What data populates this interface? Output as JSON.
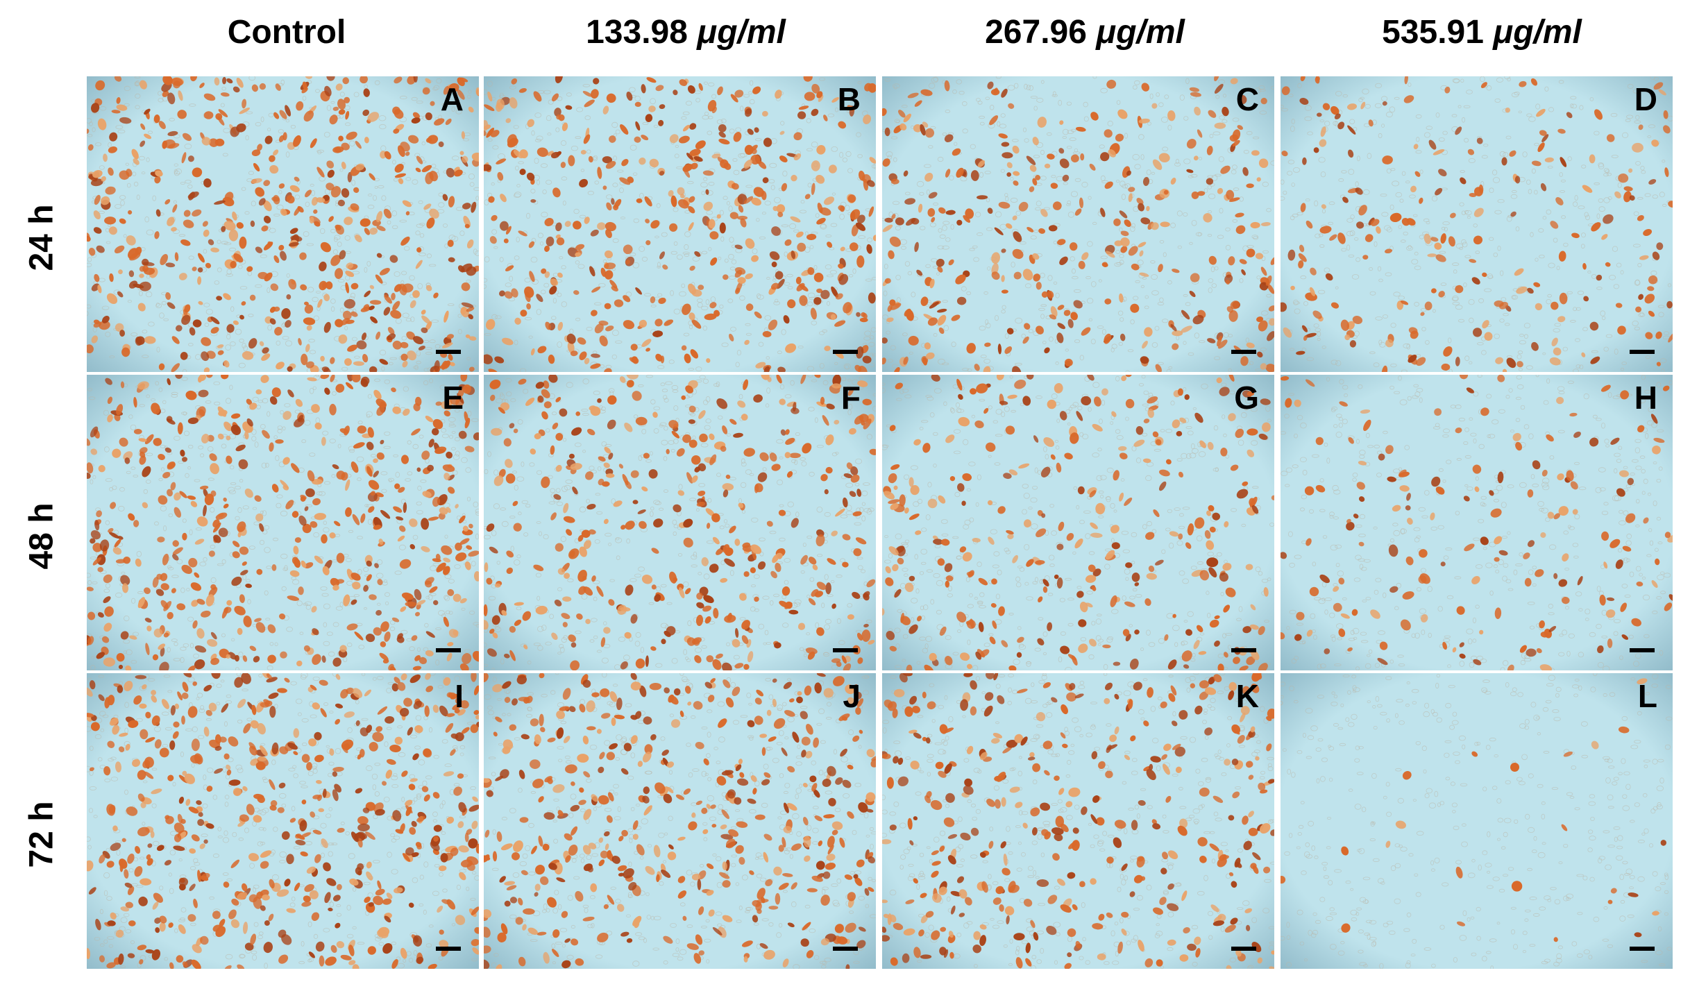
{
  "column_headers": [
    {
      "id": "control",
      "prefix": "Control",
      "unit": ""
    },
    {
      "id": "c1",
      "prefix": "133.98 ",
      "unit": "μg/ml"
    },
    {
      "id": "c2",
      "prefix": "267.96 ",
      "unit": "μg/ml"
    },
    {
      "id": "c3",
      "prefix": "535.91 ",
      "unit": "μg/ml"
    }
  ],
  "row_headers": [
    "24 h",
    "48 h",
    "72 h"
  ],
  "panels": [
    {
      "letter": "A",
      "stained_density": 1.0
    },
    {
      "letter": "B",
      "stained_density": 0.8
    },
    {
      "letter": "C",
      "stained_density": 0.62
    },
    {
      "letter": "D",
      "stained_density": 0.4
    },
    {
      "letter": "E",
      "stained_density": 0.92
    },
    {
      "letter": "F",
      "stained_density": 0.72
    },
    {
      "letter": "G",
      "stained_density": 0.55
    },
    {
      "letter": "H",
      "stained_density": 0.3
    },
    {
      "letter": "I",
      "stained_density": 0.98
    },
    {
      "letter": "J",
      "stained_density": 0.8
    },
    {
      "letter": "K",
      "stained_density": 0.66
    },
    {
      "letter": "L",
      "stained_density": 0.04
    }
  ],
  "colors": {
    "background": "#bfe3ec",
    "vignette": "#8fb9c8",
    "stained_cell": "#d9692a",
    "stained_cell_dark": "#a94318",
    "stained_cell_light": "#e9a268",
    "unstained_cell": "#b9b7a8",
    "label": "#000000",
    "scale_bar": "#000000"
  }
}
